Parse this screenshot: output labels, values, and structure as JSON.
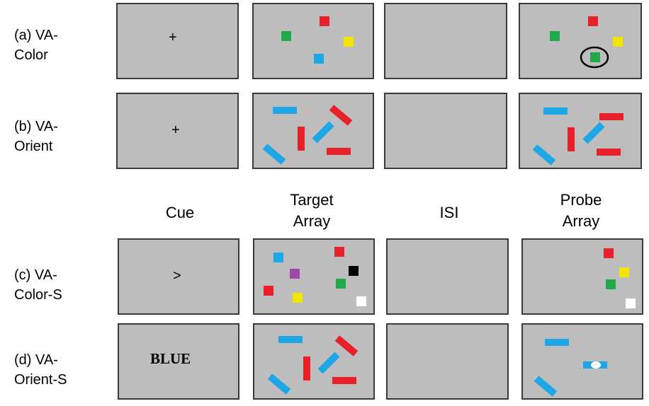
{
  "rows": [
    {
      "label_line1": "(a)  VA-",
      "label_line2": "Color"
    },
    {
      "label_line1": "(b)  VA-",
      "label_line2": "Orient"
    },
    {
      "label_line1": "(c)  VA-",
      "label_line2": "Color-S"
    },
    {
      "label_line1": "(d)  VA-",
      "label_line2": "Orient-S"
    }
  ],
  "columns": {
    "cue": "Cue",
    "target_line1": "Target",
    "target_line2": "Array",
    "isi": "ISI",
    "probe_line1": "Probe",
    "probe_line2": "Array"
  },
  "cues": {
    "fixation": "+",
    "arrow": ">",
    "word": "BLUE"
  },
  "colors": {
    "panel": "#bdbdbd",
    "red": "#e8202a",
    "green": "#22a84a",
    "yellow": "#f2e600",
    "blue": "#1ea7e6",
    "purple": "#a04aa8",
    "black": "#000000",
    "white": "#ffffff"
  }
}
